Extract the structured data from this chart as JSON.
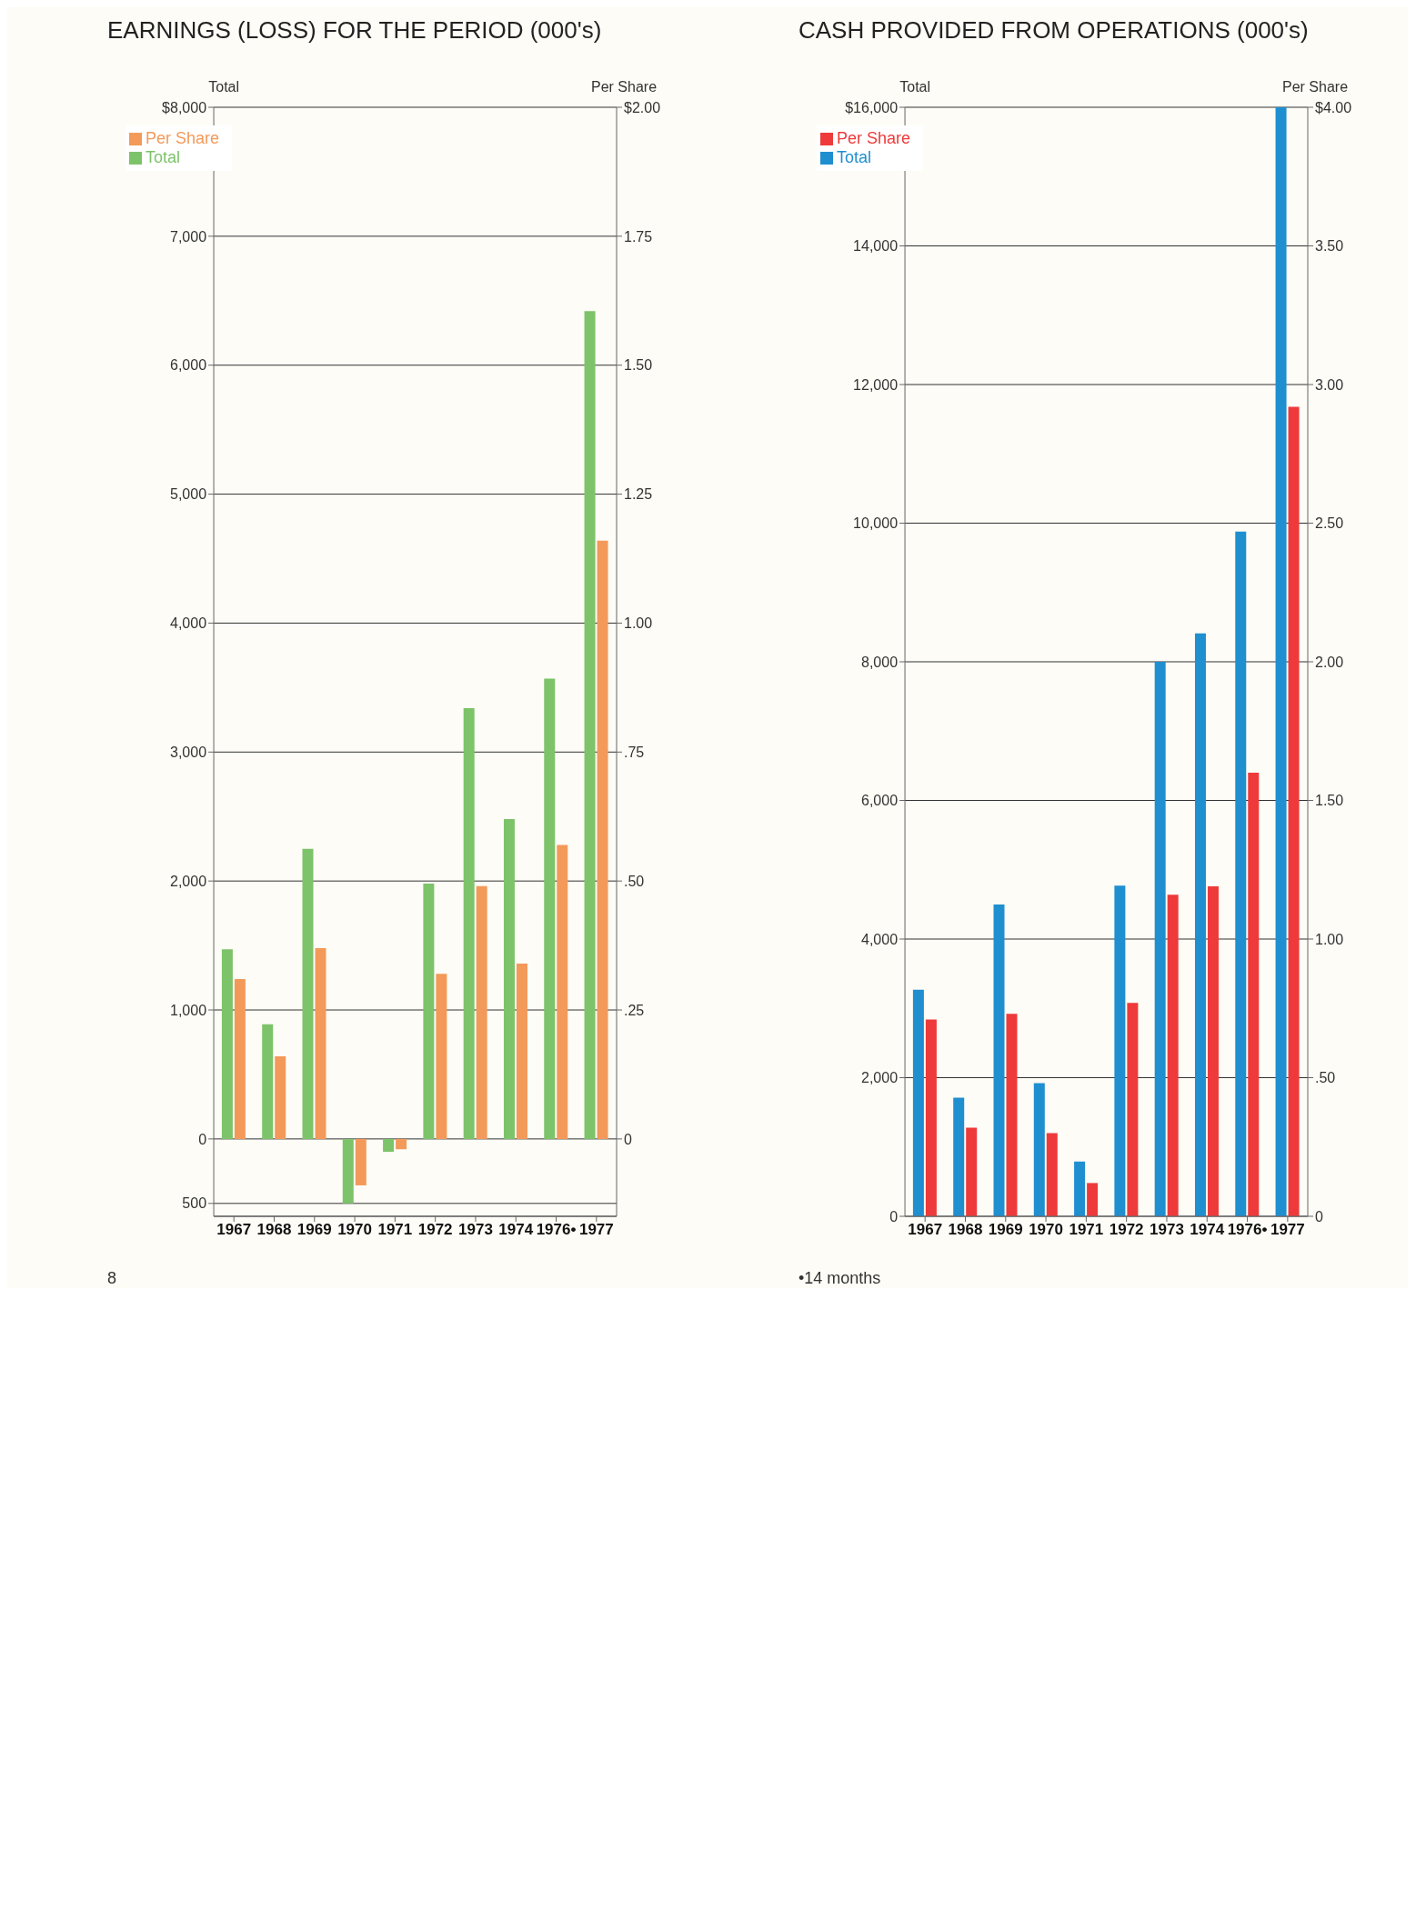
{
  "chart_data": [
    {
      "type": "bar",
      "title": "EARNINGS (LOSS) FOR THE PERIOD (000's)",
      "ylabel": "Total",
      "y2label": "Per Share",
      "categories": [
        "1967",
        "1968",
        "1969",
        "1970",
        "1971",
        "1972",
        "1973",
        "1974",
        "1976•",
        "1977"
      ],
      "series": [
        {
          "name": "Total",
          "color": "#7dc36a",
          "values": [
            1470,
            890,
            2250,
            -500,
            -100,
            1980,
            3340,
            2480,
            3570,
            6420
          ]
        },
        {
          "name": "Per Share",
          "color": "#f39a5a",
          "axis": "y2",
          "values": [
            0.31,
            0.16,
            0.37,
            -0.09,
            -0.02,
            0.32,
            0.49,
            0.34,
            0.57,
            1.16
          ]
        }
      ],
      "ylim": [
        -600,
        8000
      ],
      "yticks": [
        {
          "value": -500,
          "label": "500"
        },
        0,
        {
          "value": 1000,
          "label": "1,000"
        },
        {
          "value": 2000,
          "label": "2,000"
        },
        {
          "value": 3000,
          "label": "3,000"
        },
        {
          "value": 4000,
          "label": "4,000"
        },
        {
          "value": 5000,
          "label": "5,000"
        },
        {
          "value": 6000,
          "label": "6,000"
        },
        {
          "value": 7000,
          "label": "7,000"
        },
        {
          "value": 8000,
          "label": "$8,000"
        }
      ],
      "y2lim": [
        -0.15,
        2
      ],
      "y2ticks": [
        0,
        {
          "value": 0.25,
          "label": ".25"
        },
        {
          "value": 0.5,
          "label": ".50"
        },
        {
          "value": 0.75,
          "label": ".75"
        },
        {
          "value": 1,
          "label": "1.00"
        },
        {
          "value": 1.25,
          "label": "1.25"
        },
        {
          "value": 1.5,
          "label": "1.50"
        },
        {
          "value": 1.75,
          "label": "1.75"
        },
        {
          "value": 2,
          "label": "$2.00"
        }
      ],
      "grid": "y",
      "legend": "top left",
      "annotations": [
        "8"
      ]
    },
    {
      "type": "bar",
      "title": "CASH PROVIDED FROM OPERATIONS (000's)",
      "ylabel": "Total",
      "y2label": "Per Share",
      "categories": [
        "1967",
        "1968",
        "1969",
        "1970",
        "1971",
        "1972",
        "1973",
        "1974",
        "1976•",
        "1977"
      ],
      "series": [
        {
          "name": "Total",
          "color": "#1f8fd0",
          "values": [
            3270,
            1710,
            4500,
            1920,
            790,
            4770,
            8000,
            8410,
            9880,
            16000
          ]
        },
        {
          "name": "Per Share",
          "color": "#ee3a3a",
          "axis": "y2",
          "values": [
            0.71,
            0.32,
            0.73,
            0.3,
            0.12,
            0.77,
            1.16,
            1.19,
            1.6,
            2.92
          ]
        }
      ],
      "ylim": [
        0,
        16000
      ],
      "yticks": [
        0,
        {
          "value": 2000,
          "label": "2,000"
        },
        {
          "value": 4000,
          "label": "4,000"
        },
        {
          "value": 6000,
          "label": "6,000"
        },
        {
          "value": 8000,
          "label": "8,000"
        },
        {
          "value": 10000,
          "label": "10,000"
        },
        {
          "value": 12000,
          "label": "12,000"
        },
        {
          "value": 14000,
          "label": "14,000"
        },
        {
          "value": 16000,
          "label": "$16,000"
        }
      ],
      "y2lim": [
        0,
        4
      ],
      "y2ticks": [
        0,
        {
          "value": 0.5,
          "label": ".50"
        },
        {
          "value": 1,
          "label": "1.00"
        },
        {
          "value": 1.5,
          "label": "1.50"
        },
        {
          "value": 2,
          "label": "2.00"
        },
        {
          "value": 2.5,
          "label": "2.50"
        },
        {
          "value": 3,
          "label": "3.00"
        },
        {
          "value": 3.5,
          "label": "3.50"
        },
        {
          "value": 4,
          "label": "$4.00"
        }
      ],
      "grid": "y",
      "legend": "top left",
      "annotations": [
        "•14 months"
      ]
    }
  ]
}
